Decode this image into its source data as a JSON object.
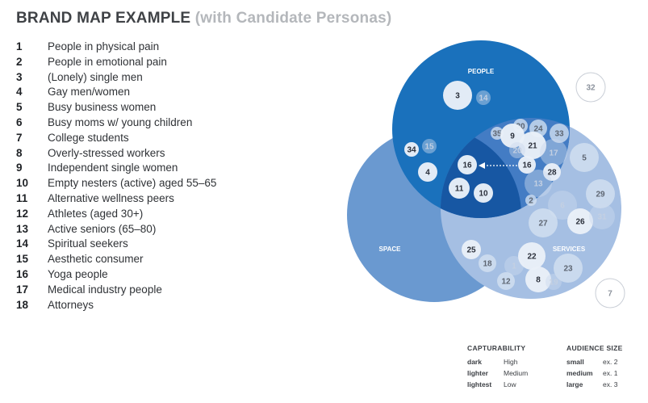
{
  "title": {
    "main": "BRAND MAP EXAMPLE",
    "sub": "(with Candidate Personas)"
  },
  "personas": [
    {
      "num": "1",
      "label": "People in physical pain"
    },
    {
      "num": "2",
      "label": "People in emotional pain"
    },
    {
      "num": "3",
      "label": "(Lonely) single men"
    },
    {
      "num": "4",
      "label": "Gay men/women"
    },
    {
      "num": "5",
      "label": "Busy business women"
    },
    {
      "num": "6",
      "label": "Busy moms w/ young children"
    },
    {
      "num": "7",
      "label": "College students"
    },
    {
      "num": "8",
      "label": "Overly-stressed workers"
    },
    {
      "num": "9",
      "label": "Independent single women"
    },
    {
      "num": "10",
      "label": "Empty nesters (active) aged 55–65"
    },
    {
      "num": "11",
      "label": "Alternative wellness peers"
    },
    {
      "num": "12",
      "label": "Athletes (aged 30+)"
    },
    {
      "num": "13",
      "label": "Active seniors (65–80)"
    },
    {
      "num": "14",
      "label": "Spiritual seekers"
    },
    {
      "num": "15",
      "label": "Aesthetic consumer"
    },
    {
      "num": "16",
      "label": "Yoga people"
    },
    {
      "num": "17",
      "label": "Medical industry people"
    },
    {
      "num": "18",
      "label": "Attorneys"
    }
  ],
  "venn": {
    "sets": [
      {
        "label": "SPACE",
        "color": "#6a99d0"
      },
      {
        "label": "SERVICES",
        "color": "#a5bfe3"
      },
      {
        "label": "PEOPLE",
        "color": "#1a71bc"
      }
    ],
    "overlap_color": "#1757a3",
    "people_services_color": "#437cc4",
    "bubbles": [
      {
        "n": "3",
        "style": "dark"
      },
      {
        "n": "14",
        "style": "lightest"
      },
      {
        "n": "35",
        "style": "lighter"
      },
      {
        "n": "30",
        "style": "lighter"
      },
      {
        "n": "9",
        "style": "dark"
      },
      {
        "n": "24",
        "style": "lighter"
      },
      {
        "n": "33",
        "style": "lighter"
      },
      {
        "n": "21",
        "style": "dark"
      },
      {
        "n": "20",
        "style": "lightest"
      },
      {
        "n": "17",
        "style": "lightest"
      },
      {
        "n": "5",
        "style": "lighter"
      },
      {
        "n": "34",
        "style": "dark"
      },
      {
        "n": "15",
        "style": "lightest"
      },
      {
        "n": "4",
        "style": "dark"
      },
      {
        "n": "16",
        "style": "dark"
      },
      {
        "n": "16",
        "style": "dark"
      },
      {
        "n": "28",
        "style": "dark"
      },
      {
        "n": "13",
        "style": "lightest"
      },
      {
        "n": "11",
        "style": "dark"
      },
      {
        "n": "10",
        "style": "dark"
      },
      {
        "n": "2",
        "style": "lighter"
      },
      {
        "n": "6",
        "style": "lightest"
      },
      {
        "n": "29",
        "style": "lighter"
      },
      {
        "n": "27",
        "style": "lighter"
      },
      {
        "n": "26",
        "style": "dark"
      },
      {
        "n": "31",
        "style": "lightest"
      },
      {
        "n": "25",
        "style": "dark"
      },
      {
        "n": "18",
        "style": "lighter"
      },
      {
        "n": "1",
        "style": "lightest"
      },
      {
        "n": "22",
        "style": "dark"
      },
      {
        "n": "23",
        "style": "lighter"
      },
      {
        "n": "12",
        "style": "lighter"
      },
      {
        "n": "8",
        "style": "dark"
      },
      {
        "n": "19",
        "style": "lightest"
      },
      {
        "n": "32",
        "style": "outline"
      },
      {
        "n": "7",
        "style": "outline"
      }
    ]
  },
  "legend": {
    "capturability": {
      "heading": "CAPTURABILITY",
      "rows": [
        {
          "key": "dark",
          "value": "High"
        },
        {
          "key": "lighter",
          "value": "Medium"
        },
        {
          "key": "lightest",
          "value": "Low"
        }
      ]
    },
    "audience_size": {
      "heading": "AUDIENCE SIZE",
      "rows": [
        {
          "key": "small",
          "value": "ex. 2"
        },
        {
          "key": "medium",
          "value": "ex. 1"
        },
        {
          "key": "large",
          "value": "ex. 3"
        }
      ]
    }
  }
}
